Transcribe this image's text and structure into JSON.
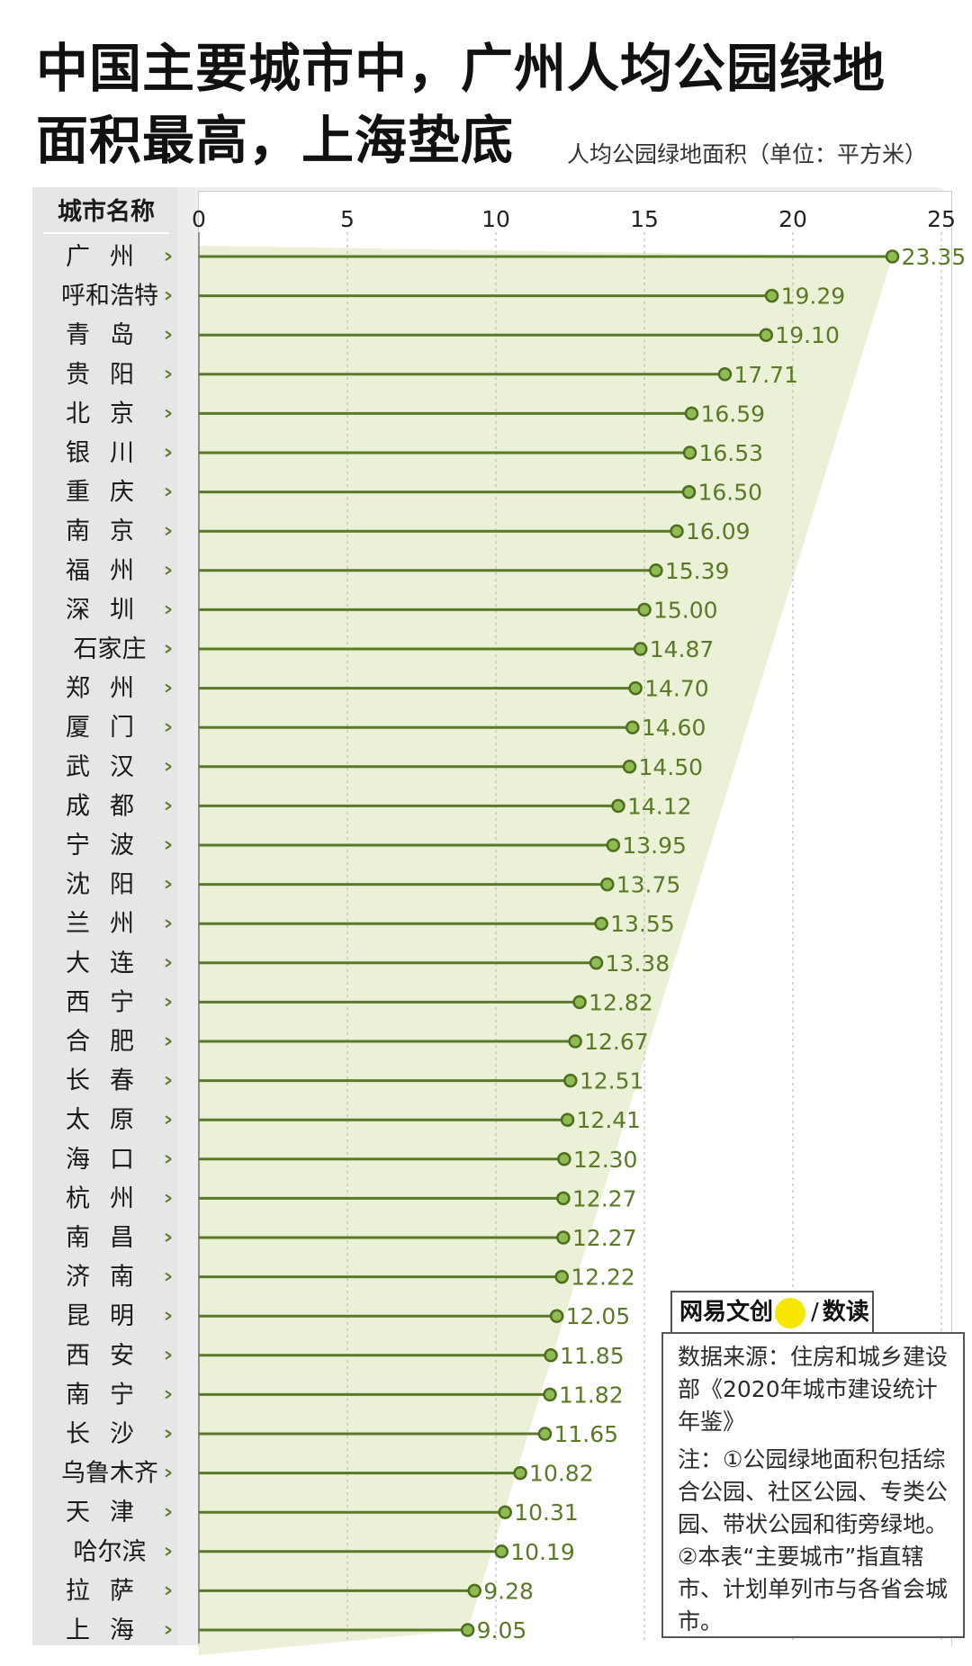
{
  "title": {
    "line1": "中国主要城市中，广州人均公园绿地",
    "line2": "面积最高，上海垫底"
  },
  "subtitle": "人均公园绿地面积（单位：平方米）",
  "city_header": "城市名称",
  "logo": {
    "brand": "网易文创",
    "product": "数读",
    "separator": "/"
  },
  "source": {
    "line": "数据来源：住房和城乡建设部《2020年城市建设统计年鉴》",
    "note": "注：①公园绿地面积包括综合公园、社区公园、专类公园、带状公园和街旁绿地。②本表“主要城市”指直辖市、计划单列市与各省会城市。"
  },
  "colors": {
    "stem": "#5a7a28",
    "dot_fill": "#8fbc52",
    "dot_stroke": "#4e6d1f",
    "wedge": "#e9f0d3",
    "value_text": "#5a7a28",
    "grid": "#bdbdbd"
  },
  "chart_data": {
    "type": "lollipop",
    "title": "中国主要城市中，广州人均公园绿地面积最高，上海垫底",
    "xlabel": "人均公园绿地面积（单位：平方米）",
    "ylabel": "城市名称",
    "xlim": [
      0,
      25
    ],
    "xticks": [
      0,
      5,
      10,
      15,
      20,
      25
    ],
    "grid": true,
    "categories": [
      "广州",
      "呼和浩特",
      "青岛",
      "贵阳",
      "北京",
      "银川",
      "重庆",
      "南京",
      "福州",
      "深圳",
      "石家庄",
      "郑州",
      "厦门",
      "武汉",
      "成都",
      "宁波",
      "沈阳",
      "兰州",
      "大连",
      "西宁",
      "合肥",
      "长春",
      "太原",
      "海口",
      "杭州",
      "南昌",
      "济南",
      "昆明",
      "西安",
      "南宁",
      "长沙",
      "乌鲁木齐",
      "天津",
      "哈尔滨",
      "拉萨",
      "上海"
    ],
    "values": [
      23.35,
      19.29,
      19.1,
      17.71,
      16.59,
      16.53,
      16.5,
      16.09,
      15.39,
      15.0,
      14.87,
      14.7,
      14.6,
      14.5,
      14.12,
      13.95,
      13.75,
      13.55,
      13.38,
      12.82,
      12.67,
      12.51,
      12.41,
      12.3,
      12.27,
      12.27,
      12.22,
      12.05,
      11.85,
      11.82,
      11.65,
      10.82,
      10.31,
      10.19,
      9.28,
      9.05
    ],
    "value_labels": [
      "23.35",
      "19.29",
      "19.10",
      "17.71",
      "16.59",
      "16.53",
      "16.50",
      "16.09",
      "15.39",
      "15.00",
      "14.87",
      "14.70",
      "14.60",
      "14.50",
      "14.12",
      "13.95",
      "13.75",
      "13.55",
      "13.38",
      "12.82",
      "12.67",
      "12.51",
      "12.41",
      "12.30",
      "12.27",
      "12.27",
      "12.22",
      "12.05",
      "11.85",
      "11.82",
      "11.65",
      "10.82",
      "10.31",
      "10.19",
      "9.28",
      "9.05"
    ]
  }
}
